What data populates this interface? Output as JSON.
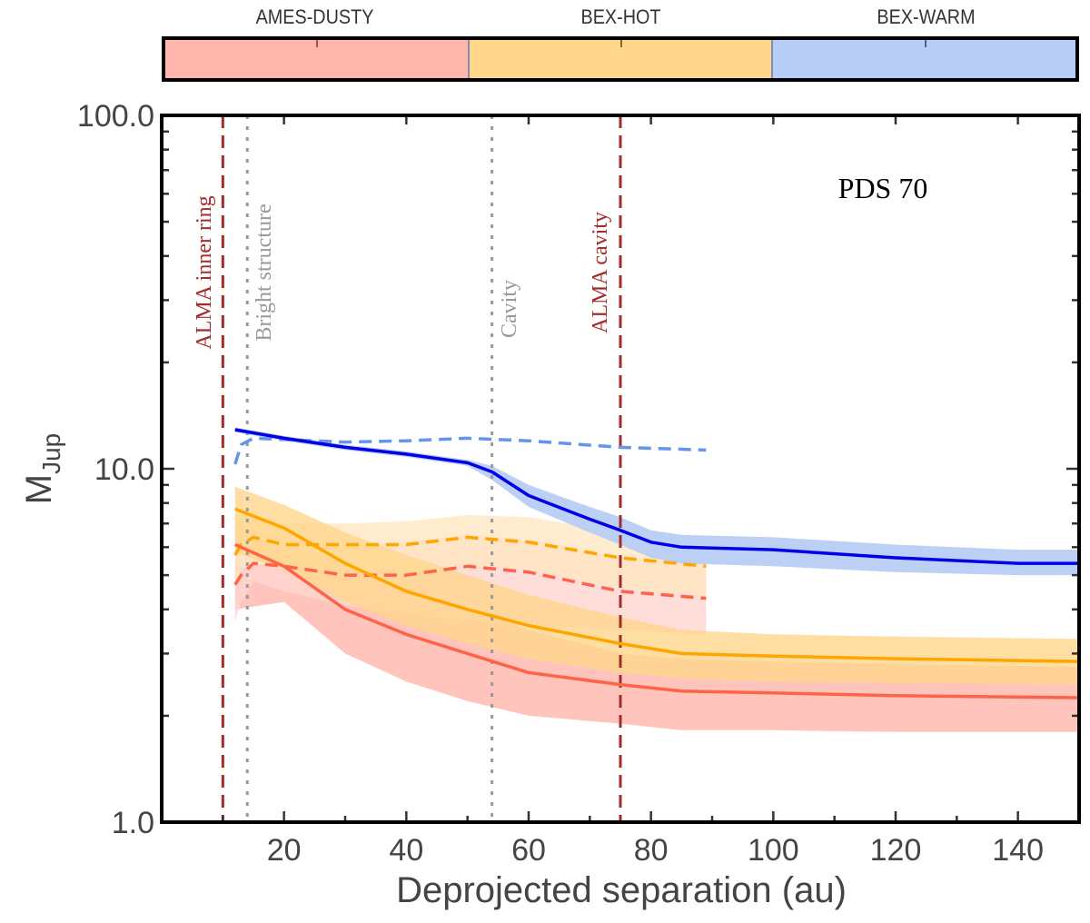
{
  "legend": {
    "items": [
      {
        "label": "AMES-DUSTY",
        "fill": "#ffb6ac",
        "tick": "#a0524a"
      },
      {
        "label": "BEX-HOT",
        "fill": "#ffd68c",
        "tick": "#8a6a20"
      },
      {
        "label": "BEX-WARM",
        "fill": "#b8cdf5",
        "tick": "#4a5f8f"
      }
    ]
  },
  "chart_data": {
    "type": "line",
    "title": "PDS 70",
    "xlabel": "Deprojected separation (au)",
    "ylabel": "M",
    "ylabel_sub": "Jup",
    "xlim": [
      0,
      150
    ],
    "ylim": [
      1.0,
      100.0
    ],
    "yscale": "log",
    "x_ticks": [
      20,
      40,
      60,
      80,
      100,
      120,
      140
    ],
    "x_tick_labels": [
      "20",
      "40",
      "60",
      "80",
      "100",
      "120",
      "140"
    ],
    "y_ticks": [
      1.0,
      10.0,
      100.0
    ],
    "y_tick_labels": [
      "1.0",
      "10.0",
      "100.0"
    ],
    "grid": false,
    "vertical_lines": [
      {
        "x": 10,
        "label": "ALMA inner ring",
        "style": "dashed",
        "color": "#a52a2a"
      },
      {
        "x": 14,
        "label": "Bright structure",
        "style": "dotted",
        "color": "#999999"
      },
      {
        "x": 54,
        "label": "Cavity",
        "style": "dotted",
        "color": "#999999"
      },
      {
        "x": 75,
        "label": "ALMA cavity",
        "style": "dashed",
        "color": "#a52a2a"
      }
    ],
    "series": [
      {
        "name": "AMES-DUSTY (solid)",
        "model": "AMES-DUSTY",
        "style": "solid",
        "color": "#ff6347",
        "band_color": "#ffb6ac",
        "x": [
          12,
          20,
          30,
          40,
          50,
          60,
          75,
          85,
          100,
          120,
          150
        ],
        "y": [
          6.1,
          5.3,
          4.0,
          3.4,
          3.0,
          2.65,
          2.45,
          2.35,
          2.32,
          2.28,
          2.25
        ],
        "lower": [
          4.0,
          4.2,
          3.0,
          2.5,
          2.2,
          2.0,
          1.9,
          1.82,
          1.82,
          1.8,
          1.8
        ],
        "upper": [
          7.0,
          6.3,
          5.3,
          4.6,
          4.0,
          3.5,
          3.0,
          2.9,
          2.85,
          2.8,
          2.75
        ]
      },
      {
        "name": "BEX-HOT (solid)",
        "model": "BEX-HOT",
        "style": "solid",
        "color": "#ffa500",
        "band_color": "#ffd68c",
        "x": [
          12,
          20,
          30,
          40,
          50,
          60,
          75,
          85,
          100,
          120,
          150
        ],
        "y": [
          7.7,
          6.8,
          5.4,
          4.5,
          4.0,
          3.6,
          3.2,
          3.0,
          2.95,
          2.9,
          2.85
        ],
        "lower": [
          5.8,
          5.2,
          4.2,
          3.6,
          3.2,
          2.9,
          2.65,
          2.55,
          2.5,
          2.48,
          2.45
        ],
        "upper": [
          8.9,
          7.9,
          6.6,
          5.7,
          5.0,
          4.4,
          3.8,
          3.5,
          3.4,
          3.35,
          3.3
        ]
      },
      {
        "name": "AMES-DUSTY (dashed)",
        "model": "AMES-DUSTY",
        "style": "dashed",
        "color": "#ff6347",
        "band_color": "#ffd5cf",
        "x": [
          12,
          13,
          15,
          20,
          30,
          40,
          50,
          60,
          75,
          89
        ],
        "y": [
          4.7,
          5.0,
          5.4,
          5.3,
          5.0,
          5.0,
          5.3,
          5.1,
          4.5,
          4.3
        ],
        "lower": [
          3.7,
          4.2,
          4.8,
          4.5,
          4.1,
          3.9,
          3.7,
          3.6,
          3.5,
          3.4
        ],
        "upper": [
          6.2,
          6.3,
          6.4,
          6.3,
          6.1,
          6.2,
          6.5,
          6.3,
          5.6,
          5.4
        ]
      },
      {
        "name": "BEX-HOT (dashed)",
        "model": "BEX-HOT",
        "style": "dashed",
        "color": "#ffa500",
        "band_color": "#ffe6c0",
        "x": [
          12,
          13,
          15,
          20,
          30,
          40,
          50,
          60,
          75,
          89
        ],
        "y": [
          5.7,
          6.1,
          6.4,
          6.1,
          6.1,
          6.1,
          6.4,
          6.2,
          5.6,
          5.3
        ],
        "lower": [
          4.8,
          5.2,
          5.4,
          5.2,
          5.2,
          5.1,
          5.3,
          5.2,
          4.6,
          4.4
        ],
        "upper": [
          7.4,
          7.4,
          7.3,
          7.0,
          7.0,
          7.1,
          7.4,
          7.3,
          6.6,
          6.2
        ]
      },
      {
        "name": "BEX-WARM (solid)",
        "model": "BEX-WARM",
        "style": "solid",
        "color": "#0000e6",
        "band_color": "#b8cdf5",
        "x": [
          12,
          20,
          30,
          40,
          50,
          54,
          60,
          70,
          75,
          80,
          85,
          100,
          120,
          140,
          150
        ],
        "y": [
          12.9,
          12.2,
          11.5,
          11.0,
          10.4,
          9.8,
          8.4,
          7.2,
          6.7,
          6.2,
          6.0,
          5.9,
          5.6,
          5.4,
          5.4
        ],
        "lower": [
          12.7,
          12.0,
          11.3,
          10.8,
          10.2,
          9.3,
          7.8,
          6.6,
          6.1,
          5.6,
          5.4,
          5.3,
          5.1,
          5.0,
          5.0
        ],
        "upper": [
          13.1,
          12.4,
          11.7,
          11.2,
          10.6,
          10.2,
          9.0,
          7.8,
          7.3,
          6.7,
          6.5,
          6.4,
          6.1,
          5.9,
          5.9
        ]
      },
      {
        "name": "BEX-WARM (dashed)",
        "model": "BEX-WARM",
        "style": "dashed",
        "color": "#6495ed",
        "band_color": null,
        "x": [
          12,
          13,
          15,
          20,
          30,
          40,
          50,
          60,
          75,
          89
        ],
        "y": [
          10.3,
          11.7,
          12.2,
          12.1,
          11.9,
          12.0,
          12.2,
          12.0,
          11.5,
          11.3
        ]
      }
    ],
    "annotation": "PDS 70"
  }
}
